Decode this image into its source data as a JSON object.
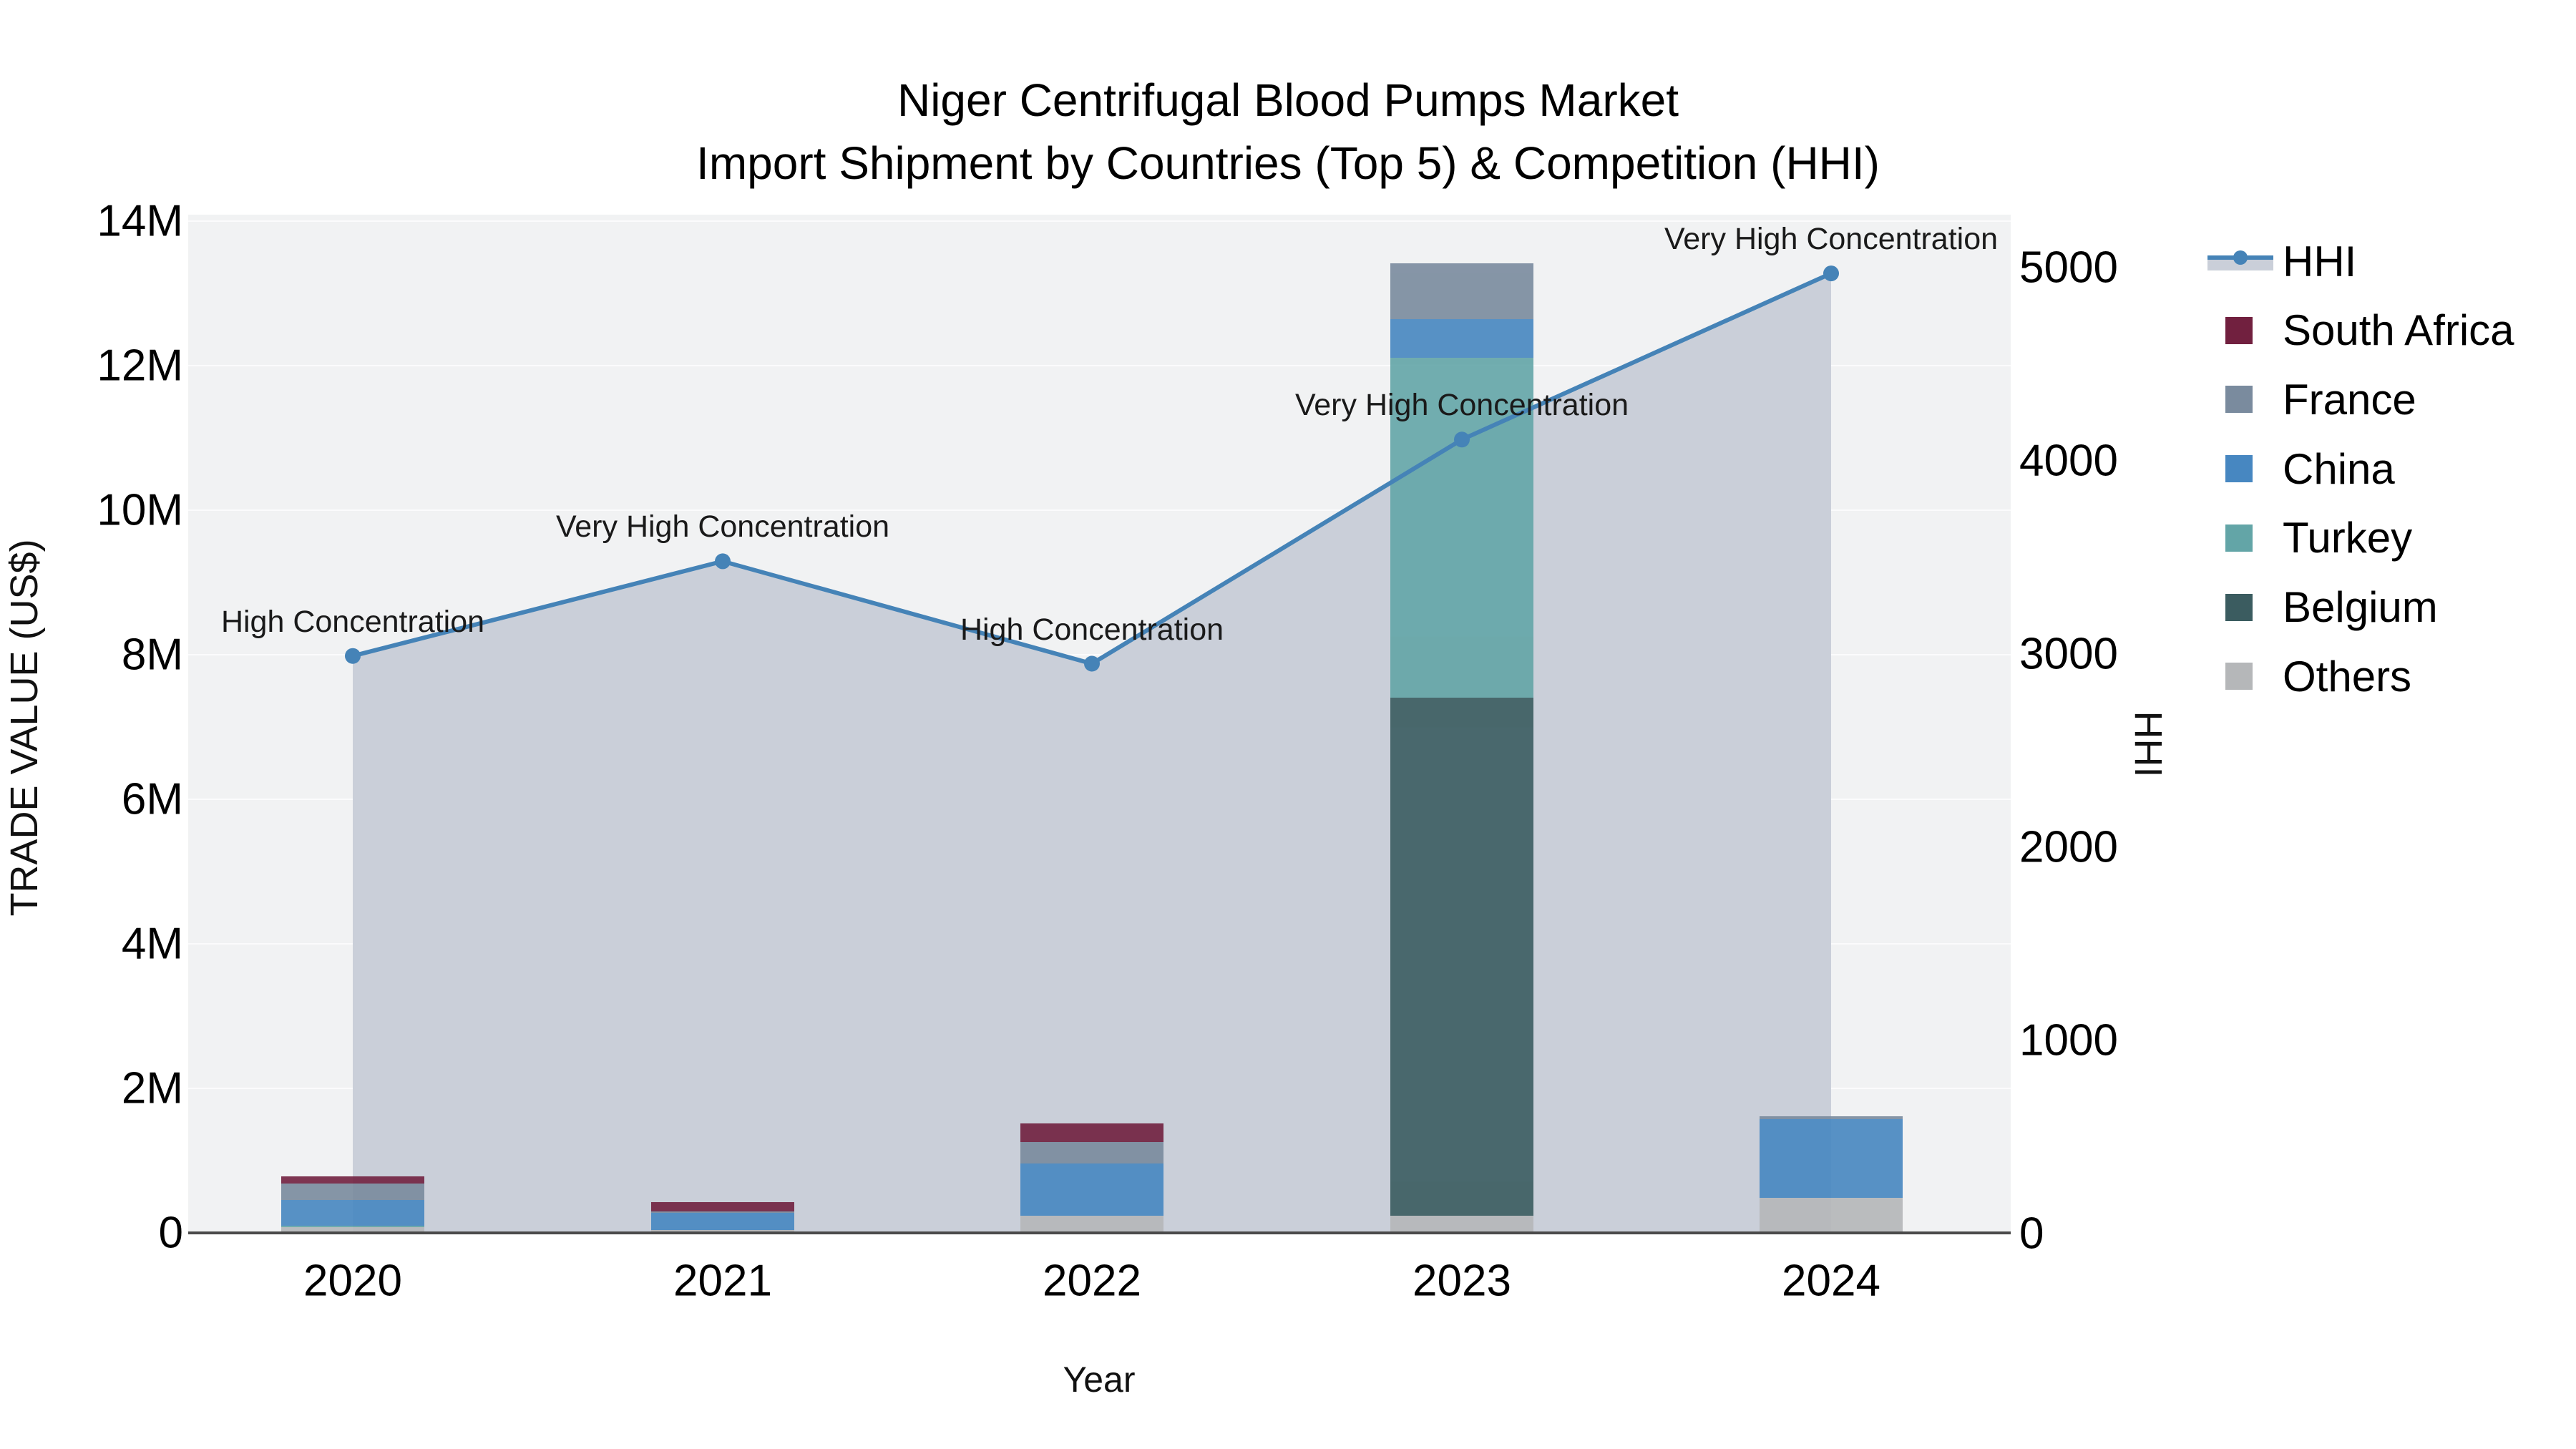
{
  "title": {
    "line1": "Niger Centrifugal Blood Pumps Market",
    "line2": "Import Shipment by Countries (Top 5) & Competition (HHI)"
  },
  "chart_data": {
    "type": "bar+line",
    "title": "Niger Centrifugal Blood Pumps Market — Import Shipment by Countries (Top 5) & Competition (HHI)",
    "categories": [
      "2020",
      "2021",
      "2022",
      "2023",
      "2024"
    ],
    "xlabel": "Year",
    "y_left": {
      "label": "TRADE VALUE (US$)",
      "tick_values_m": [
        0,
        2,
        4,
        6,
        8,
        10,
        12,
        14
      ],
      "tick_labels": [
        "0",
        "2M",
        "4M",
        "6M",
        "8M",
        "10M",
        "12M",
        "14M"
      ],
      "range_m": [
        0,
        14.09
      ],
      "grid": true
    },
    "y_right": {
      "label": "HHI",
      "tick_values": [
        0,
        1000,
        2000,
        3000,
        4000,
        5000
      ],
      "tick_labels": [
        "0",
        "1000",
        "2000",
        "3000",
        "4000",
        "5000"
      ],
      "range": [
        0,
        5270
      ],
      "grid": false
    },
    "series": [
      {
        "name": "Others",
        "color": "#b5b7b9",
        "values_m": [
          0.08,
          0.04,
          0.24,
          0.24,
          0.49
        ]
      },
      {
        "name": "Belgium",
        "color": "#3b5c60",
        "values_m": [
          0,
          0,
          0,
          7.17,
          0
        ]
      },
      {
        "name": "Turkey",
        "color": "#63a5a7",
        "values_m": [
          0.02,
          0,
          0,
          4.7,
          0
        ]
      },
      {
        "name": "China",
        "color": "#4787c1",
        "values_m": [
          0.36,
          0.24,
          0.72,
          0.53,
          1.08
        ]
      },
      {
        "name": "France",
        "color": "#7a8b9e",
        "values_m": [
          0.22,
          0.02,
          0.3,
          0.78,
          0.04
        ]
      },
      {
        "name": "South Africa",
        "color": "#71203f",
        "values_m": [
          0.1,
          0.13,
          0.26,
          0,
          0
        ]
      }
    ],
    "bar_totals_m": [
      0.78,
      0.43,
      1.52,
      13.42,
      1.61
    ],
    "hhi_line": {
      "name": "HHI",
      "values": [
        2990,
        3480,
        2950,
        4110,
        4970
      ],
      "line_color": "#4583b7",
      "marker_color": "#4583b7",
      "area_fill_color": "#cacfd9"
    },
    "annotations": [
      {
        "year": "2020",
        "text": "High Concentration"
      },
      {
        "year": "2021",
        "text": "Very High Concentration"
      },
      {
        "year": "2022",
        "text": "High Concentration"
      },
      {
        "year": "2023",
        "text": "Very High Concentration"
      },
      {
        "year": "2024",
        "text": "Very High Concentration"
      }
    ],
    "legend_position": "right"
  },
  "legend": {
    "items": [
      {
        "label": "HHI",
        "type": "line",
        "color": "#4583b7",
        "band_color": "#cacfd9"
      },
      {
        "label": "South Africa",
        "type": "square",
        "color": "#71203f"
      },
      {
        "label": "France",
        "type": "square",
        "color": "#7a8b9e"
      },
      {
        "label": "China",
        "type": "square",
        "color": "#4787c1"
      },
      {
        "label": "Turkey",
        "type": "square",
        "color": "#63a5a7"
      },
      {
        "label": "Belgium",
        "type": "square",
        "color": "#3b5c60"
      },
      {
        "label": "Others",
        "type": "square",
        "color": "#b5b7b9"
      }
    ]
  },
  "style": {
    "plot_bg": "#f1f2f3",
    "grid_color": "#fbfbfc",
    "axis_line_color": "#4a4a4a",
    "bar_opacity": 0.9,
    "text_color": "#111111"
  }
}
